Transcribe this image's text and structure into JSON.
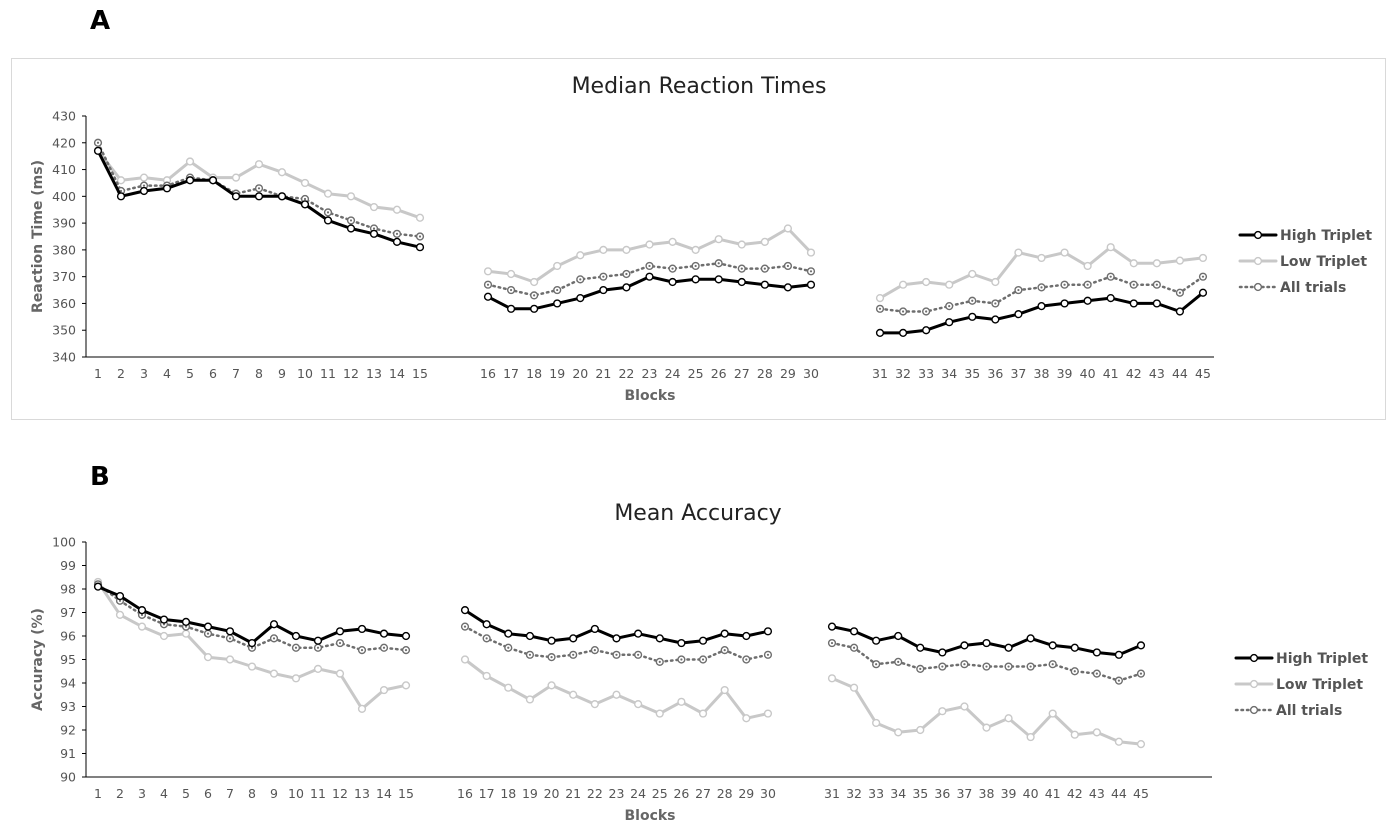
{
  "panels": {
    "a": {
      "letter": "A"
    },
    "b": {
      "letter": "B"
    }
  },
  "colors": {
    "high": "#000000",
    "low": "#c8c8c8",
    "all": "#6e6e6e",
    "axis": "#000000"
  },
  "chart_data": [
    {
      "type": "line",
      "title": "Median Reaction Times",
      "xlabel": "Blocks",
      "ylabel": "Reaction Time (ms)",
      "ylim": [
        340,
        430
      ],
      "yticks": [
        340,
        350,
        360,
        370,
        380,
        390,
        400,
        410,
        420,
        430
      ],
      "grid": false,
      "legend": "right",
      "segments": [
        [
          1,
          15
        ],
        [
          16,
          30
        ],
        [
          31,
          45
        ]
      ],
      "series": [
        {
          "name": "High Triplet",
          "style": "solid-black",
          "values": [
            417,
            400,
            402,
            403,
            406,
            406,
            400,
            400,
            400,
            397,
            391,
            388,
            386,
            383,
            381,
            362.5,
            358,
            358,
            360,
            362,
            365,
            366,
            370,
            368,
            369,
            369,
            368,
            367,
            366,
            367,
            349,
            349,
            350,
            353,
            355,
            354,
            356,
            359,
            360,
            361,
            362,
            360,
            360,
            357,
            364
          ]
        },
        {
          "name": "Low Triplet",
          "style": "solid-gray",
          "values": [
            417,
            406,
            407,
            406,
            413,
            407,
            407,
            412,
            409,
            405,
            401,
            400,
            396,
            395,
            392,
            372,
            371,
            368,
            374,
            378,
            380,
            380,
            382,
            383,
            380,
            384,
            382,
            383,
            388,
            379,
            362,
            367,
            368,
            367,
            371,
            368,
            379,
            377,
            379,
            374,
            381,
            375,
            375,
            376,
            377
          ]
        },
        {
          "name": "All trials",
          "style": "dotted",
          "values": [
            420,
            402,
            404,
            404,
            407,
            406,
            401,
            403,
            400,
            399,
            394,
            391,
            388,
            386,
            385,
            367,
            365,
            363,
            365,
            369,
            370,
            371,
            374,
            373,
            374,
            375,
            373,
            373,
            374,
            372,
            358,
            357,
            357,
            359,
            361,
            360,
            365,
            366,
            367,
            367,
            370,
            367,
            367,
            364,
            370
          ]
        }
      ]
    },
    {
      "type": "line",
      "title": "Mean Accuracy",
      "xlabel": "Blocks",
      "ylabel": "Accuracy (%)",
      "ylim": [
        90,
        100
      ],
      "yticks": [
        90,
        91,
        92,
        93,
        94,
        95,
        96,
        97,
        98,
        99,
        100
      ],
      "grid": false,
      "legend": "right",
      "segments": [
        [
          1,
          15
        ],
        [
          16,
          30
        ],
        [
          31,
          45
        ]
      ],
      "series": [
        {
          "name": "High Triplet",
          "style": "solid-black",
          "values": [
            98.1,
            97.7,
            97.1,
            96.7,
            96.6,
            96.4,
            96.2,
            95.7,
            96.5,
            96.0,
            95.8,
            96.2,
            96.3,
            96.1,
            96.0,
            97.1,
            96.5,
            96.1,
            96.0,
            95.8,
            95.9,
            96.3,
            95.9,
            96.1,
            95.9,
            95.7,
            95.8,
            96.1,
            96.0,
            96.2,
            96.4,
            96.2,
            95.8,
            96.0,
            95.5,
            95.3,
            95.6,
            95.7,
            95.5,
            95.9,
            95.6,
            95.5,
            95.3,
            95.2,
            95.6
          ]
        },
        {
          "name": "Low Triplet",
          "style": "solid-gray",
          "values": [
            98.3,
            96.9,
            96.4,
            96.0,
            96.1,
            95.1,
            95.0,
            94.7,
            94.4,
            94.2,
            94.6,
            94.4,
            92.9,
            93.7,
            93.9,
            95.0,
            94.3,
            93.8,
            93.3,
            93.9,
            93.5,
            93.1,
            93.5,
            93.1,
            92.7,
            93.2,
            92.7,
            93.7,
            92.5,
            92.7,
            94.2,
            93.8,
            92.3,
            91.9,
            92.0,
            92.8,
            93.0,
            92.1,
            92.5,
            91.7,
            92.7,
            91.8,
            91.9,
            91.5,
            91.4
          ]
        },
        {
          "name": "All trials",
          "style": "dotted",
          "values": [
            98.2,
            97.5,
            96.9,
            96.5,
            96.4,
            96.1,
            95.9,
            95.5,
            95.9,
            95.5,
            95.5,
            95.7,
            95.4,
            95.5,
            95.4,
            96.4,
            95.9,
            95.5,
            95.2,
            95.1,
            95.2,
            95.4,
            95.2,
            95.2,
            94.9,
            95.0,
            95.0,
            95.4,
            95.0,
            95.2,
            95.7,
            95.5,
            94.8,
            94.9,
            94.6,
            94.7,
            94.8,
            94.7,
            94.7,
            94.7,
            94.8,
            94.5,
            94.4,
            94.1,
            94.4
          ]
        }
      ]
    }
  ]
}
